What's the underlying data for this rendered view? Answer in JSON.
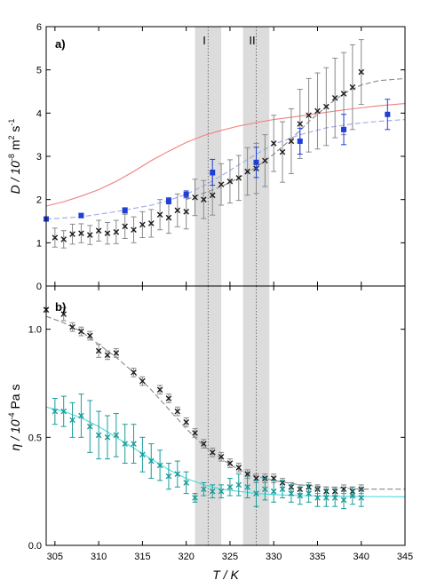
{
  "figure": {
    "xlabel": "T / K",
    "xlim": [
      304,
      345
    ],
    "xticks": [
      305,
      310,
      315,
      320,
      325,
      330,
      335,
      340,
      345
    ],
    "regions": [
      {
        "label": "I",
        "start": 321,
        "end": 324,
        "line": 322.5
      },
      {
        "label": "II",
        "start": 326.5,
        "end": 329.5,
        "line": 328
      }
    ],
    "colors": {
      "black": "#1a1a1a",
      "blue": "#1f3fd6",
      "teal": "#1a9b9b",
      "red": "#f08080",
      "band": "#dcdcdc",
      "grayerr": "#8a8a8a"
    }
  },
  "chart_data": [
    {
      "type": "scatter",
      "panel_label": "a)",
      "ylabel_main": "D / 10",
      "ylabel_exp": "-8",
      "ylabel_unit": " m",
      "ylabel_exp2": "2",
      "ylabel_unit2": " s",
      "ylabel_exp3": "-1",
      "ylim": [
        0,
        6
      ],
      "yticks": [
        0,
        1,
        2,
        3,
        4,
        5,
        6
      ],
      "series": [
        {
          "marker": "x",
          "points": [
            {
              "x": 305,
              "y": 1.12,
              "err": 0.22
            },
            {
              "x": 306,
              "y": 1.08,
              "err": 0.2
            },
            {
              "x": 307,
              "y": 1.2,
              "err": 0.23
            },
            {
              "x": 308,
              "y": 1.22,
              "err": 0.22
            },
            {
              "x": 309,
              "y": 1.18,
              "err": 0.22
            },
            {
              "x": 310,
              "y": 1.28,
              "err": 0.24
            },
            {
              "x": 311,
              "y": 1.22,
              "err": 0.25
            },
            {
              "x": 312,
              "y": 1.25,
              "err": 0.27
            },
            {
              "x": 313,
              "y": 1.38,
              "err": 0.28
            },
            {
              "x": 314,
              "y": 1.3,
              "err": 0.3
            },
            {
              "x": 315,
              "y": 1.42,
              "err": 0.3
            },
            {
              "x": 316,
              "y": 1.45,
              "err": 0.32
            },
            {
              "x": 317,
              "y": 1.65,
              "err": 0.35
            },
            {
              "x": 318,
              "y": 1.58,
              "err": 0.36
            },
            {
              "x": 319,
              "y": 1.75,
              "err": 0.38
            },
            {
              "x": 320,
              "y": 1.72,
              "err": 0.4
            },
            {
              "x": 321,
              "y": 2.05,
              "err": 0.42
            },
            {
              "x": 322,
              "y": 2.0,
              "err": 0.44
            },
            {
              "x": 323,
              "y": 2.1,
              "err": 0.46
            },
            {
              "x": 324,
              "y": 2.35,
              "err": 0.48
            },
            {
              "x": 325,
              "y": 2.42,
              "err": 0.5
            },
            {
              "x": 326,
              "y": 2.5,
              "err": 0.52
            },
            {
              "x": 327,
              "y": 2.65,
              "err": 0.55
            },
            {
              "x": 328,
              "y": 2.72,
              "err": 0.58
            },
            {
              "x": 329,
              "y": 2.9,
              "err": 0.6
            },
            {
              "x": 330,
              "y": 3.3,
              "err": 0.65
            },
            {
              "x": 331,
              "y": 3.1,
              "err": 0.7
            },
            {
              "x": 332,
              "y": 3.35,
              "err": 0.75
            },
            {
              "x": 333,
              "y": 3.75,
              "err": 0.8
            },
            {
              "x": 334,
              "y": 3.95,
              "err": 0.85
            },
            {
              "x": 335,
              "y": 4.05,
              "err": 0.88
            },
            {
              "x": 336,
              "y": 4.15,
              "err": 0.9
            },
            {
              "x": 337,
              "y": 4.35,
              "err": 0.92
            },
            {
              "x": 338,
              "y": 4.45,
              "err": 0.95
            },
            {
              "x": 339,
              "y": 4.6,
              "err": 0.98
            },
            {
              "x": 340,
              "y": 4.95,
              "err": 0.75
            }
          ]
        },
        {
          "marker": "square",
          "points": [
            {
              "x": 304,
              "y": 1.55,
              "err": 0.05
            },
            {
              "x": 308,
              "y": 1.63,
              "err": 0.05
            },
            {
              "x": 313,
              "y": 1.75,
              "err": 0.06
            },
            {
              "x": 318,
              "y": 1.97,
              "err": 0.07
            },
            {
              "x": 320,
              "y": 2.12,
              "err": 0.08
            },
            {
              "x": 323,
              "y": 2.63,
              "err": 0.3
            },
            {
              "x": 328,
              "y": 2.86,
              "err": 0.35
            },
            {
              "x": 333,
              "y": 3.35,
              "err": 0.3
            },
            {
              "x": 338,
              "y": 3.62,
              "err": 0.35
            },
            {
              "x": 343,
              "y": 3.97,
              "err": 0.35
            }
          ]
        }
      ],
      "curves": [
        {
          "x": [
            304,
            306,
            308,
            310,
            312,
            314,
            316,
            318,
            320,
            322,
            324,
            326,
            328,
            330,
            333,
            336,
            339,
            342,
            345
          ],
          "y": [
            1.85,
            1.95,
            2.08,
            2.23,
            2.42,
            2.65,
            2.9,
            3.12,
            3.32,
            3.48,
            3.6,
            3.7,
            3.78,
            3.85,
            3.93,
            4.02,
            4.1,
            4.17,
            4.22
          ]
        },
        {
          "x": [
            304,
            308,
            312,
            316,
            318,
            320,
            322,
            324,
            326,
            328,
            330,
            333,
            336,
            339,
            342,
            345
          ],
          "y": [
            1.55,
            1.6,
            1.72,
            1.87,
            1.98,
            2.12,
            2.32,
            2.55,
            2.8,
            3.05,
            3.28,
            3.5,
            3.66,
            3.75,
            3.81,
            3.85
          ]
        },
        {
          "x": [
            320,
            322,
            324,
            326,
            328,
            330,
            332,
            334,
            336,
            338,
            340,
            342,
            345
          ],
          "y": [
            2.0,
            2.15,
            2.3,
            2.5,
            2.75,
            3.05,
            3.4,
            3.8,
            4.15,
            4.45,
            4.65,
            4.75,
            4.8
          ]
        }
      ]
    },
    {
      "type": "scatter",
      "panel_label": "b)",
      "ylabel_main": "η / 10",
      "ylabel_exp": "-4",
      "ylabel_unit": " Pa s",
      "ylim": [
        0,
        1.2
      ],
      "yticks": [
        0.0,
        0.5,
        1.0
      ],
      "ytick_labels": [
        "0.0",
        "0.5",
        "1.0"
      ],
      "series": [
        {
          "marker": "x",
          "points": [
            {
              "x": 304,
              "y": 1.09,
              "err": 0.01
            },
            {
              "x": 306,
              "y": 1.07,
              "err": 0.03
            },
            {
              "x": 307,
              "y": 1.01,
              "err": 0.02
            },
            {
              "x": 308,
              "y": 0.99,
              "err": 0.02
            },
            {
              "x": 309,
              "y": 0.97,
              "err": 0.02
            },
            {
              "x": 310,
              "y": 0.9,
              "err": 0.03
            },
            {
              "x": 311,
              "y": 0.88,
              "err": 0.02
            },
            {
              "x": 312,
              "y": 0.89,
              "err": 0.02
            },
            {
              "x": 314,
              "y": 0.8,
              "err": 0.02
            },
            {
              "x": 315,
              "y": 0.76,
              "err": 0.02
            },
            {
              "x": 317,
              "y": 0.72,
              "err": 0.02
            },
            {
              "x": 318,
              "y": 0.68,
              "err": 0.02
            },
            {
              "x": 319,
              "y": 0.62,
              "err": 0.02
            },
            {
              "x": 320,
              "y": 0.57,
              "err": 0.02
            },
            {
              "x": 321,
              "y": 0.52,
              "err": 0.02
            },
            {
              "x": 322,
              "y": 0.47,
              "err": 0.02
            },
            {
              "x": 323,
              "y": 0.43,
              "err": 0.02
            },
            {
              "x": 324,
              "y": 0.41,
              "err": 0.02
            },
            {
              "x": 325,
              "y": 0.38,
              "err": 0.02
            },
            {
              "x": 326,
              "y": 0.36,
              "err": 0.02
            },
            {
              "x": 327,
              "y": 0.33,
              "err": 0.02
            },
            {
              "x": 328,
              "y": 0.31,
              "err": 0.02
            },
            {
              "x": 329,
              "y": 0.31,
              "err": 0.02
            },
            {
              "x": 330,
              "y": 0.31,
              "err": 0.02
            },
            {
              "x": 331,
              "y": 0.29,
              "err": 0.02
            },
            {
              "x": 332,
              "y": 0.27,
              "err": 0.02
            },
            {
              "x": 333,
              "y": 0.26,
              "err": 0.02
            },
            {
              "x": 334,
              "y": 0.27,
              "err": 0.02
            },
            {
              "x": 335,
              "y": 0.26,
              "err": 0.02
            },
            {
              "x": 336,
              "y": 0.25,
              "err": 0.02
            },
            {
              "x": 337,
              "y": 0.25,
              "err": 0.02
            },
            {
              "x": 338,
              "y": 0.26,
              "err": 0.02
            },
            {
              "x": 339,
              "y": 0.25,
              "err": 0.02
            },
            {
              "x": 340,
              "y": 0.26,
              "err": 0.02
            }
          ]
        },
        {
          "marker": "x",
          "points": [
            {
              "x": 305,
              "y": 0.62,
              "err": 0.06
            },
            {
              "x": 306,
              "y": 0.62,
              "err": 0.07
            },
            {
              "x": 307,
              "y": 0.58,
              "err": 0.08
            },
            {
              "x": 308,
              "y": 0.6,
              "err": 0.1
            },
            {
              "x": 309,
              "y": 0.55,
              "err": 0.12
            },
            {
              "x": 310,
              "y": 0.51,
              "err": 0.11
            },
            {
              "x": 311,
              "y": 0.5,
              "err": 0.1
            },
            {
              "x": 312,
              "y": 0.51,
              "err": 0.1
            },
            {
              "x": 313,
              "y": 0.47,
              "err": 0.09
            },
            {
              "x": 314,
              "y": 0.47,
              "err": 0.09
            },
            {
              "x": 315,
              "y": 0.42,
              "err": 0.08
            },
            {
              "x": 316,
              "y": 0.39,
              "err": 0.08
            },
            {
              "x": 317,
              "y": 0.37,
              "err": 0.07
            },
            {
              "x": 318,
              "y": 0.32,
              "err": 0.06
            },
            {
              "x": 319,
              "y": 0.33,
              "err": 0.06
            },
            {
              "x": 320,
              "y": 0.29,
              "err": 0.05
            },
            {
              "x": 321,
              "y": 0.22,
              "err": 0.02
            },
            {
              "x": 322,
              "y": 0.26,
              "err": 0.03
            },
            {
              "x": 323,
              "y": 0.25,
              "err": 0.03
            },
            {
              "x": 324,
              "y": 0.25,
              "err": 0.03
            },
            {
              "x": 325,
              "y": 0.27,
              "err": 0.04
            },
            {
              "x": 326,
              "y": 0.28,
              "err": 0.05
            },
            {
              "x": 327,
              "y": 0.27,
              "err": 0.05
            },
            {
              "x": 328,
              "y": 0.24,
              "err": 0.06
            },
            {
              "x": 329,
              "y": 0.26,
              "err": 0.05
            },
            {
              "x": 330,
              "y": 0.25,
              "err": 0.05
            },
            {
              "x": 331,
              "y": 0.26,
              "err": 0.04
            },
            {
              "x": 332,
              "y": 0.24,
              "err": 0.04
            },
            {
              "x": 333,
              "y": 0.23,
              "err": 0.04
            },
            {
              "x": 334,
              "y": 0.24,
              "err": 0.04
            },
            {
              "x": 335,
              "y": 0.22,
              "err": 0.04
            },
            {
              "x": 336,
              "y": 0.22,
              "err": 0.04
            },
            {
              "x": 337,
              "y": 0.22,
              "err": 0.04
            },
            {
              "x": 338,
              "y": 0.21,
              "err": 0.04
            },
            {
              "x": 339,
              "y": 0.23,
              "err": 0.04
            },
            {
              "x": 340,
              "y": 0.22,
              "err": 0.04
            }
          ]
        }
      ],
      "curves": [
        {
          "x": [
            304,
            306,
            308,
            310,
            312,
            314,
            316,
            318,
            320,
            322,
            324,
            326,
            328,
            330,
            333,
            336,
            340,
            345
          ],
          "y": [
            1.06,
            1.03,
            0.99,
            0.93,
            0.87,
            0.8,
            0.72,
            0.63,
            0.54,
            0.46,
            0.4,
            0.35,
            0.32,
            0.3,
            0.28,
            0.27,
            0.26,
            0.26
          ]
        },
        {
          "x": [
            304,
            306,
            308,
            310,
            312,
            314,
            316,
            318,
            320,
            322,
            324,
            326,
            328,
            330,
            333,
            336,
            340,
            345
          ],
          "y": [
            0.64,
            0.62,
            0.59,
            0.55,
            0.5,
            0.45,
            0.4,
            0.35,
            0.31,
            0.28,
            0.26,
            0.25,
            0.24,
            0.235,
            0.23,
            0.228,
            0.226,
            0.225
          ]
        }
      ]
    }
  ]
}
